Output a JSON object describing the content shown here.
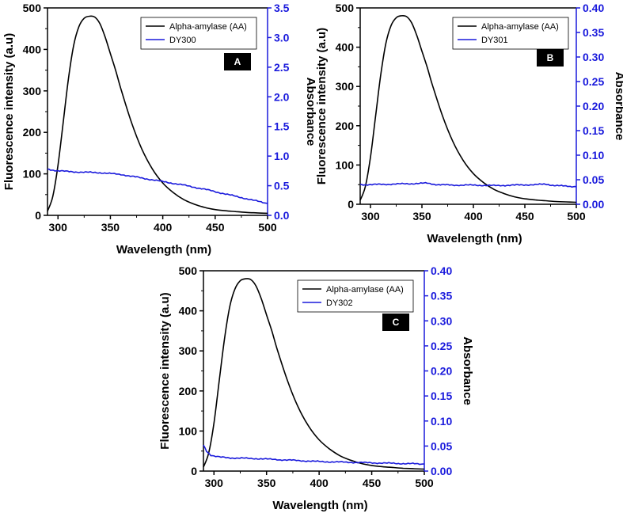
{
  "figure": {
    "panels": [
      "A",
      "B",
      "C"
    ]
  },
  "colors": {
    "fluorescence": "#000000",
    "absorbance": "#1a1adc",
    "badge": "#000000"
  },
  "chart_data": [
    {
      "type": "line",
      "panel_label": "A",
      "xlabel": "Wavelength (nm)",
      "ylabel_left": "Fluorescence intensity (a.u)",
      "ylabel_right": "Absorbance",
      "xlim": [
        290,
        500
      ],
      "ylim_left": [
        0,
        500
      ],
      "ylim_right": [
        0,
        3.5
      ],
      "xticks": [
        300,
        350,
        400,
        450,
        500
      ],
      "yticks_left": [
        0,
        100,
        200,
        300,
        400,
        500
      ],
      "yticks_right": [
        0.0,
        0.5,
        1.0,
        1.5,
        2.0,
        2.5,
        3.0,
        3.5
      ],
      "yticks_right_labels": [
        "0.0",
        "0.5",
        "1.0",
        "1.5",
        "2.0",
        "2.5",
        "3.0",
        "3.5"
      ],
      "legend_position": "top-right",
      "series": [
        {
          "name": "Alpha-amylase (AA)",
          "axis": "left",
          "x": [
            290,
            295,
            300,
            305,
            310,
            315,
            320,
            325,
            330,
            335,
            340,
            345,
            350,
            355,
            360,
            370,
            380,
            390,
            400,
            410,
            420,
            430,
            440,
            450,
            460,
            470,
            480,
            490,
            500
          ],
          "values": [
            10,
            45,
            120,
            225,
            330,
            410,
            455,
            475,
            480,
            478,
            462,
            430,
            390,
            350,
            305,
            225,
            160,
            112,
            78,
            55,
            38,
            27,
            19,
            14,
            11,
            9,
            7,
            6,
            5
          ]
        },
        {
          "name": "DY300",
          "axis": "right",
          "x": [
            290,
            300,
            320,
            340,
            360,
            380,
            400,
            420,
            440,
            460,
            480,
            500
          ],
          "values": [
            0.78,
            0.75,
            0.73,
            0.72,
            0.69,
            0.63,
            0.57,
            0.51,
            0.44,
            0.36,
            0.28,
            0.2
          ]
        }
      ]
    },
    {
      "type": "line",
      "panel_label": "B",
      "xlabel": "Wavelength (nm)",
      "ylabel_left": "Fluorescence intensity (a.u)",
      "ylabel_right": "Absorbance",
      "xlim": [
        290,
        500
      ],
      "ylim_left": [
        0,
        500
      ],
      "ylim_right": [
        0,
        0.4
      ],
      "xticks": [
        300,
        350,
        400,
        450,
        500
      ],
      "yticks_left": [
        0,
        100,
        200,
        300,
        400,
        500
      ],
      "yticks_right": [
        0.0,
        0.05,
        0.1,
        0.15,
        0.2,
        0.25,
        0.3,
        0.35,
        0.4
      ],
      "yticks_right_labels": [
        "0.00",
        "0.05",
        "0.10",
        "0.15",
        "0.20",
        "0.25",
        "0.30",
        "0.35",
        "0.40"
      ],
      "legend_position": "top-right",
      "series": [
        {
          "name": "Alpha-amylase (AA)",
          "axis": "left",
          "x": [
            290,
            295,
            300,
            305,
            310,
            315,
            320,
            325,
            330,
            335,
            340,
            345,
            350,
            355,
            360,
            370,
            380,
            390,
            400,
            410,
            420,
            430,
            440,
            450,
            460,
            470,
            480,
            490,
            500
          ],
          "values": [
            10,
            45,
            120,
            225,
            330,
            410,
            455,
            475,
            480,
            478,
            462,
            430,
            390,
            350,
            305,
            225,
            160,
            112,
            78,
            55,
            38,
            27,
            19,
            14,
            11,
            9,
            7,
            6,
            5
          ]
        },
        {
          "name": "DY301",
          "axis": "right",
          "x": [
            290,
            300,
            320,
            340,
            355,
            365,
            380,
            400,
            420,
            440,
            460,
            470,
            480,
            490,
            500
          ],
          "values": [
            0.04,
            0.04,
            0.041,
            0.042,
            0.043,
            0.04,
            0.039,
            0.039,
            0.038,
            0.039,
            0.04,
            0.041,
            0.038,
            0.037,
            0.036
          ]
        }
      ]
    },
    {
      "type": "line",
      "panel_label": "C",
      "xlabel": "Wavelength (nm)",
      "ylabel_left": "Fluorescence intensity (a.u)",
      "ylabel_right": "Absorbance",
      "xlim": [
        290,
        500
      ],
      "ylim_left": [
        0,
        500
      ],
      "ylim_right": [
        0,
        0.4
      ],
      "xticks": [
        300,
        350,
        400,
        450,
        500
      ],
      "yticks_left": [
        0,
        100,
        200,
        300,
        400,
        500
      ],
      "yticks_right": [
        0.0,
        0.05,
        0.1,
        0.15,
        0.2,
        0.25,
        0.3,
        0.35,
        0.4
      ],
      "yticks_right_labels": [
        "0.00",
        "0.05",
        "0.10",
        "0.15",
        "0.20",
        "0.25",
        "0.30",
        "0.35",
        "0.40"
      ],
      "legend_position": "top-right",
      "series": [
        {
          "name": "Alpha-amylase (AA)",
          "axis": "left",
          "x": [
            290,
            295,
            300,
            305,
            310,
            315,
            320,
            325,
            330,
            335,
            340,
            345,
            350,
            355,
            360,
            370,
            380,
            390,
            400,
            410,
            420,
            430,
            440,
            450,
            460,
            470,
            480,
            490,
            500
          ],
          "values": [
            10,
            45,
            120,
            225,
            330,
            410,
            455,
            475,
            480,
            478,
            462,
            430,
            390,
            350,
            305,
            225,
            160,
            112,
            78,
            55,
            38,
            27,
            19,
            14,
            11,
            9,
            7,
            6,
            5
          ]
        },
        {
          "name": "DY302",
          "axis": "right",
          "x": [
            290,
            293,
            297,
            300,
            305,
            310,
            320,
            340,
            360,
            380,
            400,
            420,
            440,
            460,
            480,
            500
          ],
          "values": [
            0.052,
            0.04,
            0.032,
            0.03,
            0.028,
            0.027,
            0.026,
            0.025,
            0.023,
            0.021,
            0.019,
            0.018,
            0.017,
            0.016,
            0.015,
            0.014
          ]
        }
      ]
    }
  ]
}
